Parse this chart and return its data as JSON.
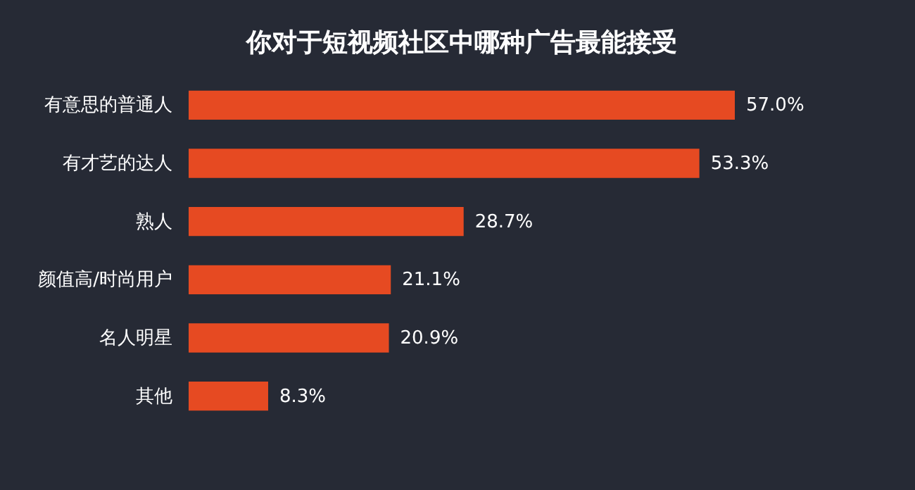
{
  "chart_data": {
    "type": "bar",
    "orientation": "horizontal",
    "title": "你对于短视频社区中哪种广告最能接受",
    "categories": [
      "有意思的普通人",
      "有才艺的达人",
      "熟人",
      "颜值高/时尚用户",
      "名人明星",
      "其他"
    ],
    "values": [
      57.0,
      53.3,
      28.7,
      21.1,
      20.9,
      8.3
    ],
    "value_labels": [
      "57.0%",
      "53.3%",
      "28.7%",
      "21.1%",
      "20.9%",
      "8.3%"
    ],
    "color": "#e64a22"
  }
}
